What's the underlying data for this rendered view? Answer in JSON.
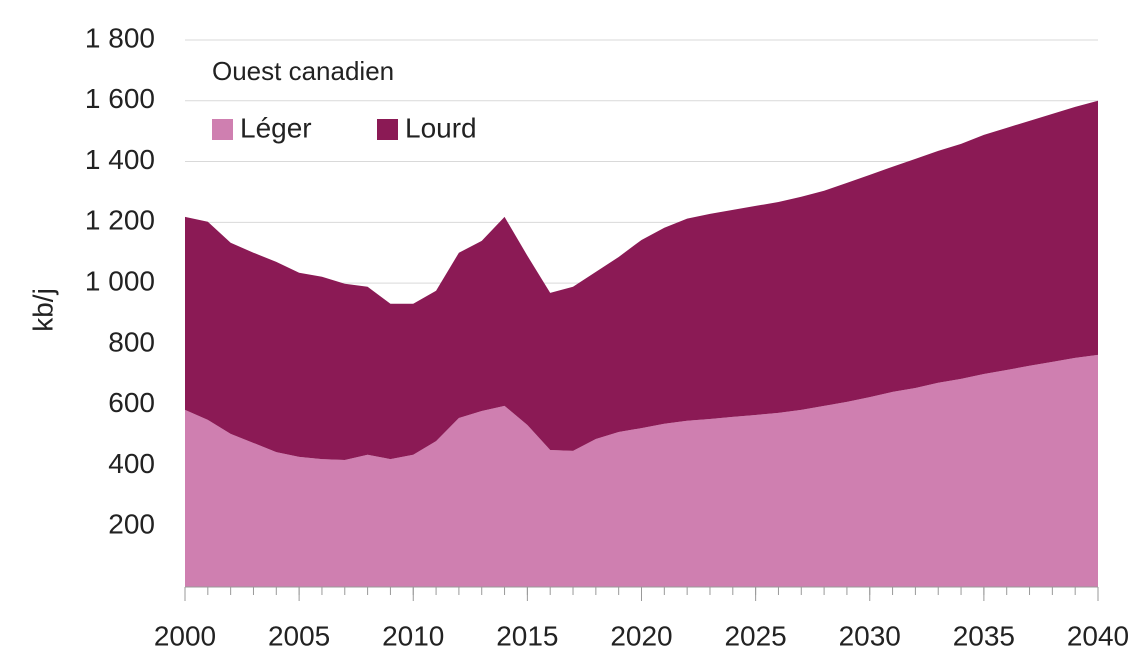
{
  "chart_data": {
    "type": "stacked-area",
    "legend_title": "Ouest canadien",
    "y_label": "kb/j",
    "x": [
      2000,
      2001,
      2002,
      2003,
      2004,
      2005,
      2006,
      2007,
      2008,
      2009,
      2010,
      2011,
      2012,
      2013,
      2014,
      2015,
      2016,
      2017,
      2018,
      2019,
      2020,
      2021,
      2022,
      2023,
      2024,
      2025,
      2026,
      2027,
      2028,
      2029,
      2030,
      2031,
      2032,
      2033,
      2034,
      2035,
      2036,
      2037,
      2038,
      2039,
      2040
    ],
    "series": [
      {
        "name": "Léger",
        "color": "#cf7fb0",
        "values": [
          583,
          550,
          504,
          474,
          444,
          428,
          421,
          418,
          435,
          421,
          435,
          480,
          556,
          579,
          596,
          533,
          451,
          448,
          487,
          510,
          523,
          537,
          547,
          553,
          560,
          566,
          573,
          583,
          596,
          609,
          625,
          642,
          655,
          672,
          685,
          701,
          714,
          728,
          741,
          754,
          764
        ]
      },
      {
        "name": "Lourd",
        "color": "#8b1a55",
        "values": [
          635,
          652,
          629,
          626,
          626,
          606,
          600,
          580,
          553,
          511,
          497,
          495,
          544,
          560,
          622,
          557,
          517,
          540,
          550,
          576,
          619,
          645,
          665,
          675,
          681,
          688,
          694,
          701,
          708,
          721,
          731,
          741,
          754,
          763,
          773,
          787,
          797,
          806,
          816,
          826,
          836
        ]
      }
    ],
    "xlim": [
      2000,
      2040
    ],
    "xticks": [
      2000,
      2005,
      2010,
      2015,
      2020,
      2025,
      2030,
      2035,
      2040
    ],
    "ylim": [
      0,
      1800
    ],
    "yticks": [
      200,
      400,
      600,
      800,
      {
        "value": 1000,
        "label": "1 000"
      },
      {
        "value": 1200,
        "label": "1 200"
      },
      {
        "value": 1400,
        "label": "1 400"
      },
      {
        "value": 1600,
        "label": "1 600"
      },
      {
        "value": 1800,
        "label": "1 800"
      }
    ],
    "grid": true
  }
}
